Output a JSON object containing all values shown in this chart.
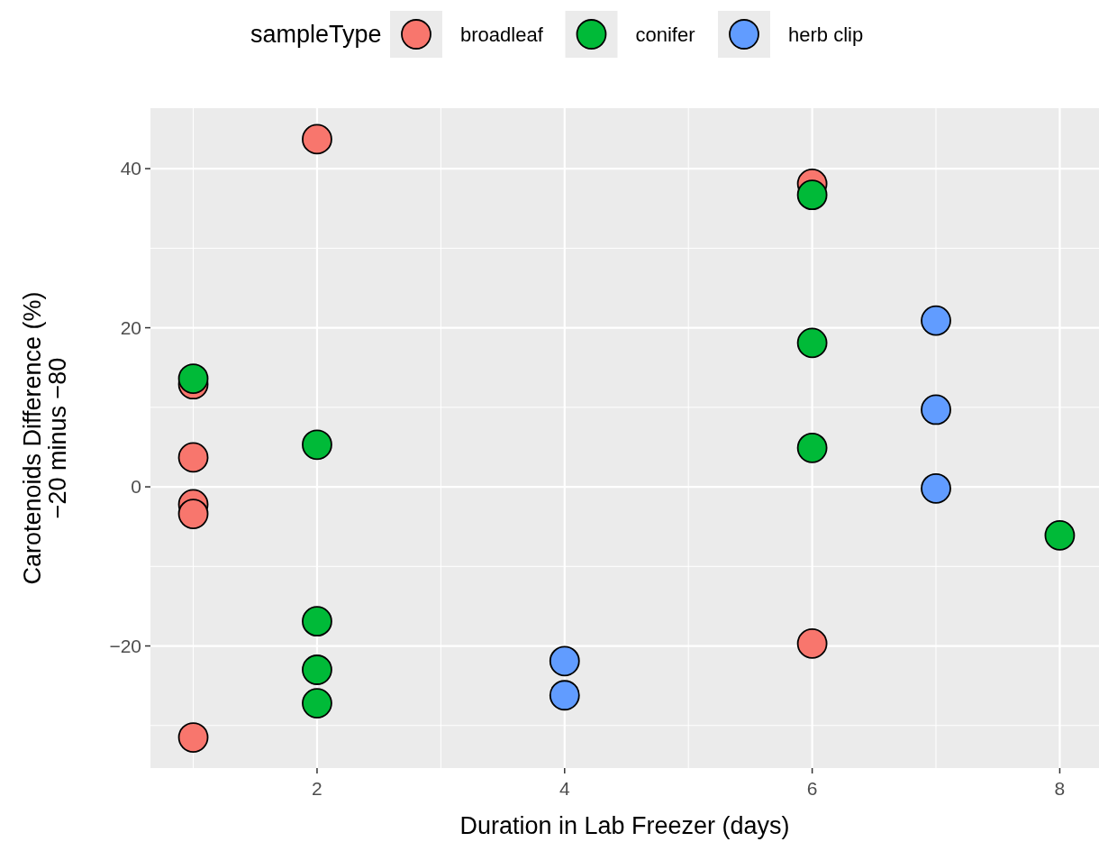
{
  "chart_data": {
    "type": "scatter",
    "xlabel": "Duration in Lab Freezer (days)",
    "ylabel": "Carotenoids Difference (%)\n−20 minus −80",
    "legend_title": "sampleType",
    "legend": "top",
    "grid": true,
    "marker": "circle",
    "xlim": [
      0.654,
      8.317
    ],
    "xticks": [
      2,
      4,
      6,
      8
    ],
    "ylim": [
      -35.35,
      47.6
    ],
    "yticks": [
      -20,
      0,
      20,
      40
    ],
    "series": [
      {
        "name": "broadleaf",
        "color": "#f8766d",
        "x": [
          1,
          1,
          1,
          1,
          1,
          2,
          6,
          6
        ],
        "values": [
          12.9,
          3.7,
          -2.2,
          -3.4,
          -31.5,
          43.7,
          38.1,
          -19.7
        ]
      },
      {
        "name": "conifer",
        "color": "#00ba38",
        "x": [
          1,
          2,
          2,
          2,
          2,
          6,
          6,
          6,
          8
        ],
        "values": [
          13.6,
          5.3,
          -16.9,
          -23.0,
          -27.2,
          36.7,
          18.1,
          4.9,
          -6.1
        ]
      },
      {
        "name": "herb clip",
        "color": "#619cff",
        "x": [
          4,
          4,
          7,
          7,
          7
        ],
        "values": [
          -21.9,
          -26.2,
          20.9,
          9.7,
          -0.2
        ]
      }
    ]
  }
}
